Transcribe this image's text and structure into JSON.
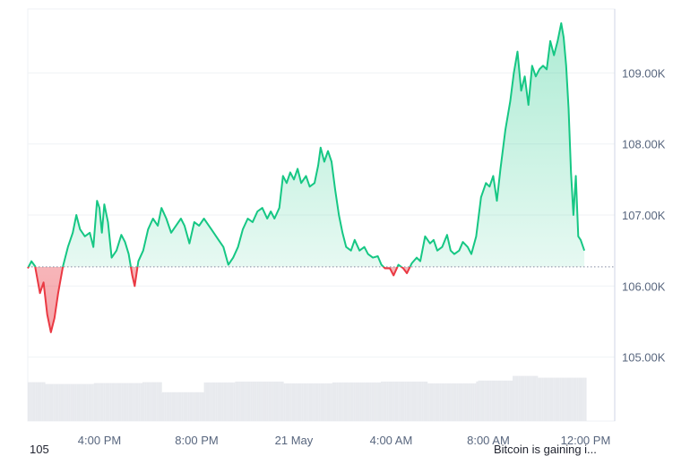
{
  "chart_data": {
    "type": "area",
    "baseline": 106.27,
    "ylim": [
      104.1,
      109.9
    ],
    "y_ticks": [
      {
        "value": 109,
        "label": "109.00K"
      },
      {
        "value": 108,
        "label": "108.00K"
      },
      {
        "value": 107,
        "label": "107.00K"
      },
      {
        "value": 106,
        "label": "106.00K"
      },
      {
        "value": 105,
        "label": "105.00K"
      }
    ],
    "x_ticks": [
      {
        "t": 4,
        "label": "4:00 PM"
      },
      {
        "t": 8,
        "label": "8:00 PM"
      },
      {
        "t": 12,
        "label": "21 May"
      },
      {
        "t": 16,
        "label": "4:00 AM"
      },
      {
        "t": 20,
        "label": "8:00 AM"
      },
      {
        "t": 24,
        "label": "12:00 PM"
      }
    ],
    "xlim": [
      1.05,
      25.2
    ],
    "series": [
      {
        "points": [
          [
            1.05,
            106.25
          ],
          [
            1.2,
            106.35
          ],
          [
            1.35,
            106.28
          ],
          [
            1.55,
            105.9
          ],
          [
            1.7,
            106.05
          ],
          [
            1.85,
            105.6
          ],
          [
            2.0,
            105.35
          ],
          [
            2.15,
            105.55
          ],
          [
            2.3,
            105.9
          ],
          [
            2.5,
            106.28
          ],
          [
            2.7,
            106.55
          ],
          [
            2.9,
            106.75
          ],
          [
            3.05,
            107.0
          ],
          [
            3.2,
            106.8
          ],
          [
            3.4,
            106.7
          ],
          [
            3.6,
            106.75
          ],
          [
            3.75,
            106.55
          ],
          [
            3.9,
            107.2
          ],
          [
            4.0,
            107.1
          ],
          [
            4.1,
            106.75
          ],
          [
            4.2,
            107.15
          ],
          [
            4.35,
            106.9
          ],
          [
            4.5,
            106.4
          ],
          [
            4.7,
            106.5
          ],
          [
            4.9,
            106.72
          ],
          [
            5.05,
            106.62
          ],
          [
            5.2,
            106.45
          ],
          [
            5.35,
            106.15
          ],
          [
            5.45,
            106.0
          ],
          [
            5.6,
            106.35
          ],
          [
            5.8,
            106.5
          ],
          [
            6.0,
            106.8
          ],
          [
            6.2,
            106.95
          ],
          [
            6.4,
            106.85
          ],
          [
            6.55,
            107.1
          ],
          [
            6.75,
            106.95
          ],
          [
            6.95,
            106.75
          ],
          [
            7.15,
            106.85
          ],
          [
            7.35,
            106.95
          ],
          [
            7.5,
            106.85
          ],
          [
            7.7,
            106.6
          ],
          [
            7.9,
            106.9
          ],
          [
            8.1,
            106.85
          ],
          [
            8.3,
            106.95
          ],
          [
            8.5,
            106.85
          ],
          [
            8.7,
            106.75
          ],
          [
            8.9,
            106.65
          ],
          [
            9.1,
            106.55
          ],
          [
            9.3,
            106.3
          ],
          [
            9.5,
            106.4
          ],
          [
            9.7,
            106.55
          ],
          [
            9.9,
            106.8
          ],
          [
            10.1,
            106.95
          ],
          [
            10.3,
            106.9
          ],
          [
            10.5,
            107.05
          ],
          [
            10.7,
            107.1
          ],
          [
            10.9,
            106.95
          ],
          [
            11.05,
            107.05
          ],
          [
            11.2,
            106.95
          ],
          [
            11.4,
            107.1
          ],
          [
            11.55,
            107.55
          ],
          [
            11.7,
            107.45
          ],
          [
            11.85,
            107.6
          ],
          [
            12.0,
            107.5
          ],
          [
            12.15,
            107.65
          ],
          [
            12.3,
            107.45
          ],
          [
            12.5,
            107.55
          ],
          [
            12.65,
            107.4
          ],
          [
            12.85,
            107.45
          ],
          [
            13.0,
            107.7
          ],
          [
            13.1,
            107.95
          ],
          [
            13.25,
            107.75
          ],
          [
            13.4,
            107.9
          ],
          [
            13.55,
            107.75
          ],
          [
            13.7,
            107.35
          ],
          [
            13.85,
            107.0
          ],
          [
            14.0,
            106.75
          ],
          [
            14.15,
            106.55
          ],
          [
            14.35,
            106.5
          ],
          [
            14.5,
            106.65
          ],
          [
            14.7,
            106.5
          ],
          [
            14.9,
            106.55
          ],
          [
            15.05,
            106.45
          ],
          [
            15.25,
            106.4
          ],
          [
            15.45,
            106.42
          ],
          [
            15.6,
            106.3
          ],
          [
            15.75,
            106.25
          ],
          [
            15.95,
            106.25
          ],
          [
            16.1,
            106.15
          ],
          [
            16.3,
            106.3
          ],
          [
            16.5,
            106.25
          ],
          [
            16.65,
            106.18
          ],
          [
            16.85,
            106.32
          ],
          [
            17.05,
            106.4
          ],
          [
            17.2,
            106.35
          ],
          [
            17.4,
            106.7
          ],
          [
            17.6,
            106.6
          ],
          [
            17.75,
            106.65
          ],
          [
            17.9,
            106.5
          ],
          [
            18.1,
            106.55
          ],
          [
            18.3,
            106.72
          ],
          [
            18.45,
            106.5
          ],
          [
            18.6,
            106.45
          ],
          [
            18.8,
            106.5
          ],
          [
            18.95,
            106.62
          ],
          [
            19.15,
            106.55
          ],
          [
            19.3,
            106.45
          ],
          [
            19.5,
            106.7
          ],
          [
            19.7,
            107.25
          ],
          [
            19.9,
            107.45
          ],
          [
            20.05,
            107.4
          ],
          [
            20.2,
            107.55
          ],
          [
            20.35,
            107.2
          ],
          [
            20.5,
            107.65
          ],
          [
            20.7,
            108.2
          ],
          [
            20.9,
            108.6
          ],
          [
            21.05,
            109.0
          ],
          [
            21.2,
            109.3
          ],
          [
            21.35,
            108.75
          ],
          [
            21.5,
            108.95
          ],
          [
            21.65,
            108.55
          ],
          [
            21.8,
            109.1
          ],
          [
            21.95,
            108.95
          ],
          [
            22.1,
            109.05
          ],
          [
            22.25,
            109.1
          ],
          [
            22.4,
            109.05
          ],
          [
            22.55,
            109.45
          ],
          [
            22.7,
            109.25
          ],
          [
            22.85,
            109.45
          ],
          [
            23.0,
            109.7
          ],
          [
            23.1,
            109.5
          ],
          [
            23.2,
            109.1
          ],
          [
            23.3,
            108.5
          ],
          [
            23.4,
            107.6
          ],
          [
            23.5,
            107.0
          ],
          [
            23.6,
            107.55
          ],
          [
            23.7,
            106.7
          ],
          [
            23.8,
            106.65
          ],
          [
            23.95,
            106.5
          ]
        ]
      }
    ],
    "volume": [
      {
        "t0": 1.05,
        "t1": 6.5,
        "level": 0.62
      },
      {
        "t0": 6.5,
        "t1": 8.3,
        "level": 0.46
      },
      {
        "t0": 8.3,
        "t1": 19.5,
        "level": 0.63
      },
      {
        "t0": 19.5,
        "t1": 21.0,
        "level": 0.66
      },
      {
        "t0": 21.0,
        "t1": 24.0,
        "level": 0.72
      }
    ],
    "colors": {
      "up": "#16c784",
      "down": "#ea3943",
      "up_fill": "#16c784",
      "down_fill": "#ea3943",
      "volume": "#e8eaee",
      "grid": "#eff2f5",
      "axis": "#cfd6e4"
    }
  },
  "footer": {
    "left_text": "105",
    "right_text": "Bitcoin is gaining i..."
  }
}
